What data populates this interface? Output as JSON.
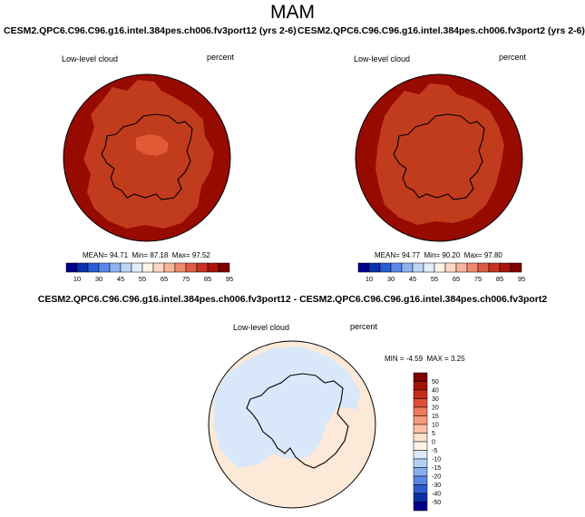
{
  "figure": {
    "title": "MAM",
    "panels": [
      {
        "title": "CESM2.QPC6.C96.C96.g16.intel.384pes.ch006.fv3port12 (yrs 2-6)",
        "variable": "Low-level cloud",
        "units": "percent",
        "stats": {
          "mean_label": "MEAN=",
          "mean": "94.71",
          "min_label": "Min=",
          "min": "87.18",
          "max_label": "Max=",
          "max": "97.52"
        }
      },
      {
        "title": "CESM2.QPC6.C96.C96.g16.intel.384pes.ch006.fv3port2 (yrs 2-6)",
        "variable": "Low-level cloud",
        "units": "percent",
        "stats": {
          "mean_label": "MEAN=",
          "mean": "94.77",
          "min_label": "Min=",
          "min": "90.20",
          "max_label": "Max=",
          "max": "97.80"
        }
      }
    ],
    "difference": {
      "title": "CESM2.QPC6.C96.C96.g16.intel.384pes.ch006.fv3port12 - CESM2.QPC6.C96.C96.g16.intel.384pes.ch006.fv3port2",
      "variable": "Low-level cloud",
      "units": "percent",
      "stats": {
        "min_label": "MIN =",
        "min": "-4.59",
        "max_label": "MAX =",
        "max": "3.25"
      }
    }
  },
  "colorbars": {
    "abs_levels": [
      "10",
      "30",
      "45",
      "55",
      "65",
      "75",
      "85",
      "95"
    ],
    "abs_colors": [
      "#00008b",
      "#0a2fb0",
      "#2a5cd6",
      "#5b88ea",
      "#8db2f2",
      "#bcd6f7",
      "#e2eefb",
      "#fff4e6",
      "#fdd9c4",
      "#f8b59a",
      "#ef8a6e",
      "#df5a44",
      "#c83222",
      "#a91509",
      "#7f0000"
    ],
    "diff_levels": [
      "50",
      "40",
      "30",
      "20",
      "15",
      "10",
      "5",
      "0",
      "-5",
      "-10",
      "-15",
      "-20",
      "-30",
      "-40",
      "-50"
    ],
    "diff_colors": [
      "#7f0000",
      "#a31306",
      "#c42c1d",
      "#dd4f3b",
      "#ec7a5c",
      "#f59b7d",
      "#fbbfa4",
      "#fde3d0",
      "#fdf2e6",
      "#dbe9fb",
      "#b5d0f5",
      "#86aded",
      "#5a86e3",
      "#2e5bcf",
      "#0a2fa8",
      "#00008b"
    ]
  },
  "map_colors": {
    "high": "#960a00",
    "mid": "#c13b1d",
    "inner": "#e25a35",
    "diff_pos": "#fde9d8",
    "diff_neg": "#d8e8fa"
  }
}
